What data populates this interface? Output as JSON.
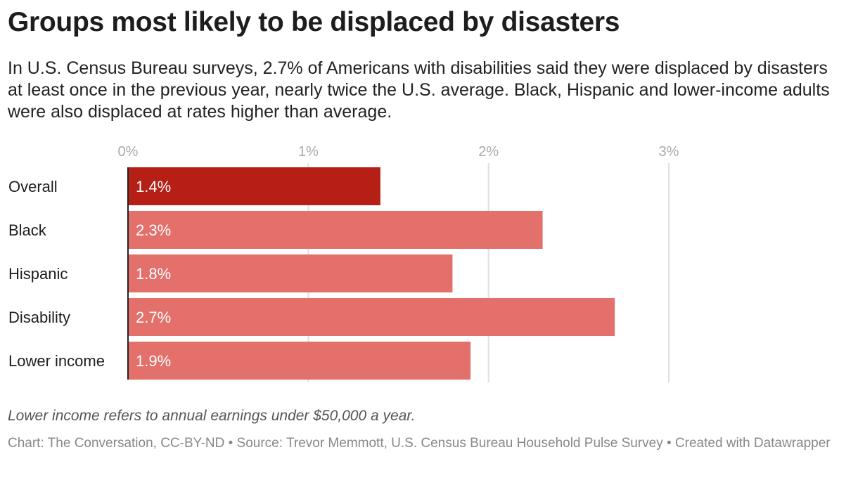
{
  "title": "Groups most likely to be displaced by disasters",
  "subtitle": "In U.S. Census Bureau surveys, 2.7% of Americans with disabilities said they were displaced by disasters at least once in the previous year, nearly twice the U.S. average. Black, Hispanic and lower-income adults were also displaced at rates higher than average.",
  "notes": "Lower income refers to annual earnings under $50,000 a year.",
  "footer": "Chart: The Conversation, CC-BY-ND • Source: Trevor Memmott, U.S. Census Bureau Household Pulse Survey • Created with Datawrapper",
  "chart_data": {
    "type": "bar",
    "orientation": "horizontal",
    "categories": [
      "Overall",
      "Black",
      "Hispanic",
      "Disability",
      "Lower income"
    ],
    "values": [
      1.4,
      2.3,
      1.8,
      2.7,
      1.9
    ],
    "data_labels": [
      "1.4%",
      "2.3%",
      "1.8%",
      "2.7%",
      "1.9%"
    ],
    "xlim": [
      0,
      3
    ],
    "x_ticks": [
      0,
      1,
      2,
      3
    ],
    "x_tick_labels": [
      "0%",
      "1%",
      "2%",
      "3%"
    ],
    "grid": true,
    "colors": {
      "highlight": "#b51f16",
      "default": "#e4706b",
      "grid": "#e0e0e0",
      "tick_label": "#aaaaaa"
    }
  }
}
